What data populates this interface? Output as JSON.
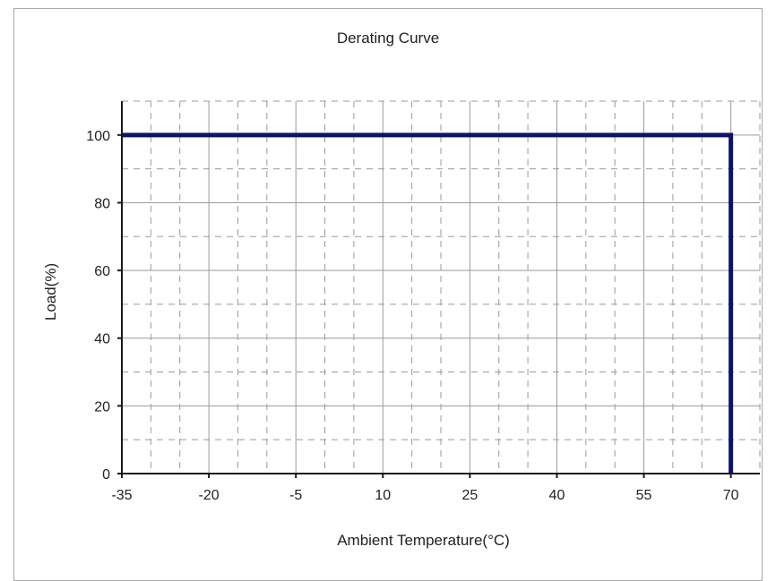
{
  "chart_data": {
    "type": "line",
    "title": "Derating Curve",
    "xlabel": "Ambient Temperature(°C)",
    "ylabel": "Load(%)",
    "xlim": [
      -35,
      75
    ],
    "ylim": [
      0,
      110
    ],
    "xticks": [
      -35,
      -20,
      -5,
      10,
      25,
      40,
      55,
      70
    ],
    "yticks": [
      0,
      20,
      40,
      60,
      80,
      100
    ],
    "grid": true,
    "series": [
      {
        "x": [
          -35,
          70,
          70
        ],
        "y": [
          100,
          100,
          0
        ]
      }
    ],
    "colors": {
      "line": "#0d1468",
      "axis": "#1a1a1a",
      "grid": "#9a9a9a"
    }
  }
}
